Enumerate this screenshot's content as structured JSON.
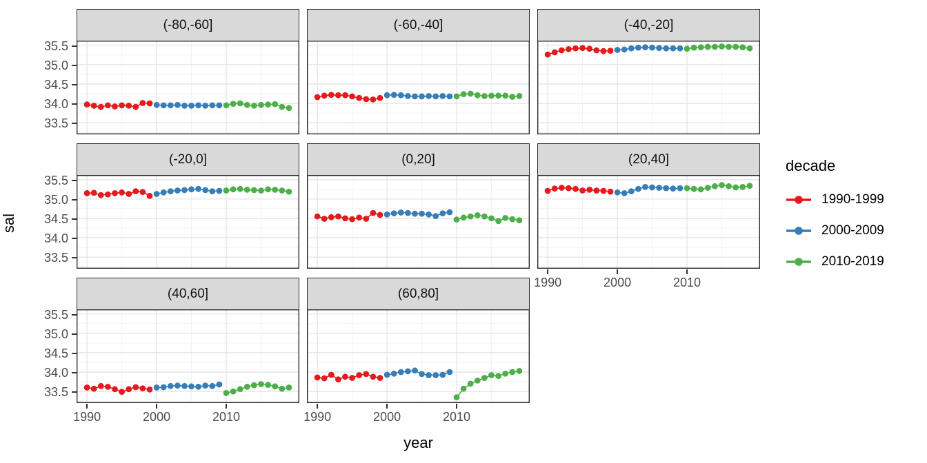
{
  "chart_data": {
    "type": "scatter",
    "title": "",
    "xlabel": "year",
    "ylabel": "sal",
    "legend_title": "decade",
    "legend_position": "right",
    "grid": true,
    "x_ticks": [
      "1990",
      "2000",
      "2010"
    ],
    "y_ticks": [
      "33.5",
      "34.0",
      "34.5",
      "35.0",
      "35.5"
    ],
    "x_minor_ticks": [
      1995,
      2005,
      2015
    ],
    "y_minor_ticks": [
      33.25,
      33.75,
      34.25,
      34.75,
      35.25
    ],
    "xlim": [
      1988.5,
      2020.5
    ],
    "ylim": [
      33.2,
      35.62
    ],
    "series": [
      {
        "name": "1990-1999",
        "color": "#E41A1C",
        "x": [
          1990,
          1991,
          1992,
          1993,
          1994,
          1995,
          1996,
          1997,
          1998,
          1999
        ]
      },
      {
        "name": "2000-2009",
        "color": "#377EB8",
        "x": [
          2000,
          2001,
          2002,
          2003,
          2004,
          2005,
          2006,
          2007,
          2008,
          2009
        ]
      },
      {
        "name": "2010-2019",
        "color": "#4DAF4A",
        "x": [
          2010,
          2011,
          2012,
          2013,
          2014,
          2015,
          2016,
          2017,
          2018,
          2019
        ]
      }
    ],
    "facets": [
      {
        "label": "(-80,-60]",
        "values": {
          "1990-1999": [
            33.97,
            33.94,
            33.91,
            33.95,
            33.92,
            33.95,
            33.94,
            33.91,
            34.01,
            34.0
          ],
          "2000-2009": [
            33.96,
            33.95,
            33.95,
            33.96,
            33.94,
            33.94,
            33.95,
            33.94,
            33.95,
            33.95
          ],
          "2010-2019": [
            33.95,
            33.99,
            34.0,
            33.96,
            33.94,
            33.96,
            33.97,
            33.98,
            33.91,
            33.88
          ]
        }
      },
      {
        "label": "(-60,-40]",
        "values": {
          "1990-1999": [
            34.16,
            34.2,
            34.22,
            34.21,
            34.21,
            34.18,
            34.14,
            34.11,
            34.1,
            34.14
          ],
          "2000-2009": [
            34.21,
            34.22,
            34.21,
            34.19,
            34.18,
            34.18,
            34.19,
            34.18,
            34.19,
            34.18
          ],
          "2010-2019": [
            34.18,
            34.24,
            34.25,
            34.21,
            34.19,
            34.2,
            34.2,
            34.2,
            34.17,
            34.19
          ]
        }
      },
      {
        "label": "(-40,-20]",
        "values": {
          "1990-1999": [
            35.26,
            35.32,
            35.37,
            35.4,
            35.42,
            35.43,
            35.41,
            35.37,
            35.35,
            35.36
          ],
          "2000-2009": [
            35.38,
            35.39,
            35.42,
            35.44,
            35.45,
            35.44,
            35.43,
            35.42,
            35.42,
            35.42
          ],
          "2010-2019": [
            35.41,
            35.44,
            35.45,
            35.46,
            35.46,
            35.47,
            35.46,
            35.46,
            35.45,
            35.42
          ]
        }
      },
      {
        "label": "(-20,0]",
        "values": {
          "1990-1999": [
            35.15,
            35.16,
            35.1,
            35.12,
            35.15,
            35.17,
            35.13,
            35.2,
            35.18,
            35.08
          ],
          "2000-2009": [
            35.13,
            35.17,
            35.2,
            35.22,
            35.23,
            35.25,
            35.26,
            35.23,
            35.2,
            35.21
          ],
          "2010-2019": [
            35.22,
            35.25,
            35.26,
            35.24,
            35.23,
            35.22,
            35.25,
            35.24,
            35.22,
            35.19
          ]
        }
      },
      {
        "label": "(0,20]",
        "values": {
          "1990-1999": [
            34.55,
            34.49,
            34.53,
            34.55,
            34.5,
            34.48,
            34.52,
            34.49,
            34.64,
            34.59
          ],
          "2000-2009": [
            34.6,
            34.63,
            34.65,
            34.64,
            34.62,
            34.62,
            34.6,
            34.56,
            34.63,
            34.66
          ],
          "2010-2019": [
            34.47,
            34.52,
            34.55,
            34.58,
            34.55,
            34.5,
            34.43,
            34.51,
            34.48,
            34.45
          ]
        }
      },
      {
        "label": "(20,40]",
        "values": {
          "1990-1999": [
            35.21,
            35.27,
            35.29,
            35.28,
            35.26,
            35.22,
            35.24,
            35.22,
            35.21,
            35.19
          ],
          "2000-2009": [
            35.17,
            35.15,
            35.2,
            35.26,
            35.31,
            35.3,
            35.29,
            35.28,
            35.27,
            35.28
          ],
          "2010-2019": [
            35.28,
            35.26,
            35.25,
            35.29,
            35.33,
            35.36,
            35.33,
            35.3,
            35.31,
            35.34
          ]
        }
      },
      {
        "label": "(40,60]",
        "values": {
          "1990-1999": [
            33.6,
            33.57,
            33.64,
            33.62,
            33.56,
            33.49,
            33.56,
            33.61,
            33.58,
            33.55
          ],
          "2000-2009": [
            33.6,
            33.61,
            33.64,
            33.65,
            33.64,
            33.63,
            33.62,
            33.65,
            33.64,
            33.68
          ],
          "2010-2019": [
            33.46,
            33.5,
            33.56,
            33.62,
            33.66,
            33.69,
            33.67,
            33.63,
            33.57,
            33.6
          ]
        }
      },
      {
        "label": "(60,80]",
        "values": {
          "1990-1999": [
            33.86,
            33.84,
            33.93,
            33.81,
            33.88,
            33.85,
            33.92,
            33.95,
            33.88,
            33.85
          ],
          "2000-2009": [
            33.93,
            33.96,
            34.0,
            34.02,
            34.04,
            33.95,
            33.92,
            33.92,
            33.93,
            34.0
          ],
          "2010-2019": [
            33.35,
            33.57,
            33.7,
            33.78,
            33.85,
            33.92,
            33.9,
            33.96,
            34.0,
            34.03
          ]
        }
      }
    ],
    "colors": {
      "strip_background": "#d9d9d9",
      "panel_border": "#2b2b2b",
      "major_grid": "#e4e4e4",
      "minor_grid": "#f2f2f2",
      "tick_text": "#4d4d4d"
    }
  }
}
